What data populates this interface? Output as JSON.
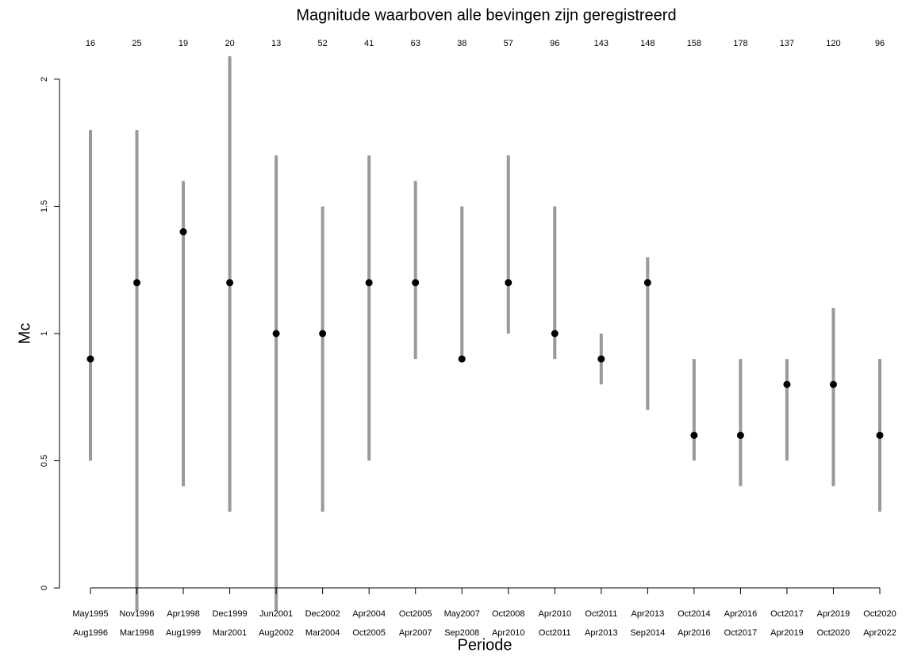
{
  "chart_data": {
    "type": "errorbar",
    "title": "Magnitude waarboven alle bevingen zijn geregistreerd",
    "xlabel": "Periode",
    "ylabel": "Mc",
    "categories": [
      [
        "May1995",
        "Aug1996"
      ],
      [
        "Nov1996",
        "Mar1998"
      ],
      [
        "Apr1998",
        "Aug1999"
      ],
      [
        "Dec1999",
        "Mar2001"
      ],
      [
        "Jun2001",
        "Aug2002"
      ],
      [
        "Dec2002",
        "Mar2004"
      ],
      [
        "Apr2004",
        "Oct2005"
      ],
      [
        "Oct2005",
        "Apr2007"
      ],
      [
        "May2007",
        "Sep2008"
      ],
      [
        "Oct2008",
        "Apr2010"
      ],
      [
        "Apr2010",
        "Oct2011"
      ],
      [
        "Oct2011",
        "Apr2013"
      ],
      [
        "Apr2013",
        "Sep2014"
      ],
      [
        "Oct2014",
        "Apr2016"
      ],
      [
        "Apr2016",
        "Oct2017"
      ],
      [
        "Oct2017",
        "Apr2019"
      ],
      [
        "Apr2019",
        "Oct2020"
      ],
      [
        "Oct2020",
        "Apr2022"
      ]
    ],
    "counts": [
      16,
      25,
      19,
      20,
      13,
      52,
      41,
      63,
      38,
      57,
      96,
      143,
      148,
      158,
      178,
      137,
      120,
      96
    ],
    "values": [
      0.9,
      1.2,
      1.4,
      1.2,
      1.0,
      1.0,
      1.2,
      1.2,
      0.9,
      1.2,
      1.0,
      0.9,
      1.2,
      0.6,
      0.6,
      0.8,
      0.8,
      0.6
    ],
    "low": [
      0.5,
      -0.1,
      0.4,
      0.3,
      -0.1,
      0.3,
      0.5,
      0.9,
      0.9,
      1.0,
      0.9,
      0.8,
      0.7,
      0.5,
      0.4,
      0.5,
      0.4,
      0.3
    ],
    "high": [
      1.8,
      1.8,
      1.6,
      2.1,
      1.7,
      1.5,
      1.7,
      1.6,
      1.5,
      1.7,
      1.5,
      1.0,
      1.3,
      0.9,
      0.9,
      0.9,
      1.1,
      0.9
    ],
    "ylim": [
      -0.09,
      2.09
    ],
    "yticks": [
      0,
      0.5,
      1,
      1.5,
      2
    ],
    "point_color": "#000000",
    "bar_color": "#999999"
  }
}
